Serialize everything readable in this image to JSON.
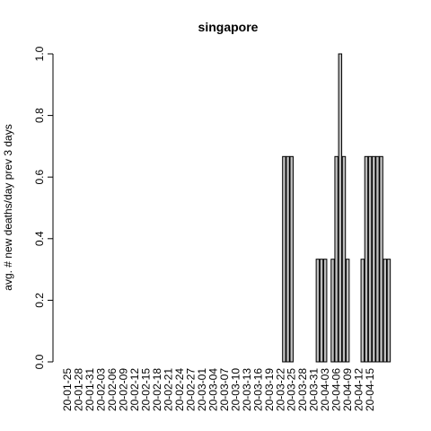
{
  "chart_data": {
    "type": "bar",
    "title": "singapore",
    "ylabel": "avg. # new deaths/day prev  3  days",
    "xlabel": "",
    "ylim": [
      0,
      1.0
    ],
    "yticks": [
      "0.0",
      "0.2",
      "0.4",
      "0.6",
      "0.8",
      "1.0"
    ],
    "ytick_values": [
      0,
      0.2,
      0.4,
      0.6,
      0.8,
      1.0
    ],
    "x_tick_labels": [
      "20-01-25",
      "20-01-28",
      "20-01-31",
      "20-02-03",
      "20-02-06",
      "20-02-09",
      "20-02-12",
      "20-02-15",
      "20-02-18",
      "20-02-21",
      "20-02-24",
      "20-02-27",
      "20-03-01",
      "20-03-04",
      "20-03-07",
      "20-03-10",
      "20-03-13",
      "20-03-16",
      "20-03-19",
      "20-03-22",
      "20-03-25",
      "20-03-28",
      "20-03-31",
      "20-04-03",
      "20-04-06",
      "20-04-09",
      "20-04-12",
      "20-04-15"
    ],
    "x_tick_every": 3,
    "values": [
      0,
      0,
      0,
      0,
      0,
      0,
      0,
      0,
      0,
      0,
      0,
      0,
      0,
      0,
      0,
      0,
      0,
      0,
      0,
      0,
      0,
      0,
      0,
      0,
      0,
      0,
      0,
      0,
      0,
      0,
      0,
      0,
      0,
      0,
      0,
      0,
      0,
      0,
      0,
      0,
      0,
      0,
      0,
      0,
      0,
      0,
      0,
      0,
      0,
      0,
      0,
      0,
      0,
      0,
      0,
      0,
      0,
      0,
      0.6667,
      0.6667,
      0.6667,
      0,
      0,
      0,
      0,
      0,
      0,
      0.3333,
      0.3333,
      0.3333,
      0,
      0.3333,
      0.6667,
      1.0,
      0.6667,
      0.3333,
      0,
      0,
      0,
      0.3333,
      0.6667,
      0.6667,
      0.6667,
      0.6667,
      0.6667,
      0.3333,
      0.3333
    ]
  }
}
